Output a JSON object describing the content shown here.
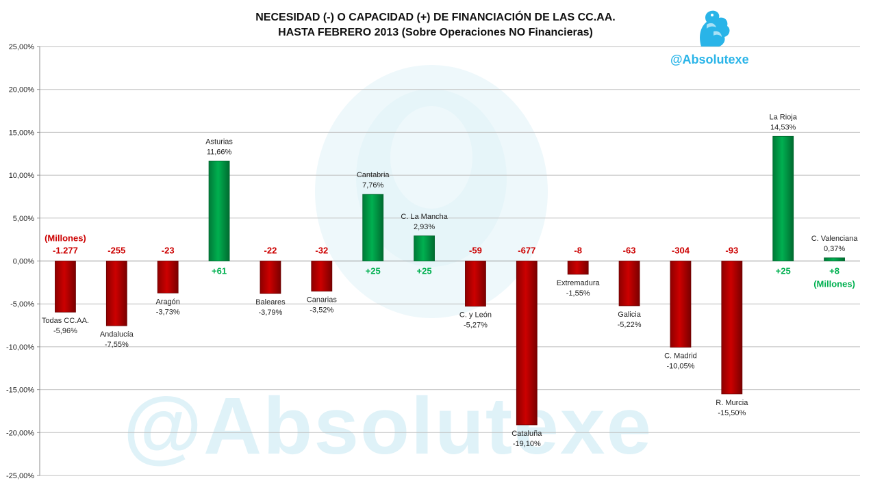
{
  "header": {
    "title_line1": "NECESIDAD (-) O CAPACIDAD (+) DE FINANCIACIÓN DE LAS CC.AA.",
    "title_line2": "HASTA FEBRERO 2013 (Sobre Operaciones NO Financieras)",
    "handle": "@Absolutexe",
    "watermark": "@Absolutexe"
  },
  "colors": {
    "negative": "#cc0000",
    "positive": "#00b050",
    "handle": "#29b4e8"
  },
  "chart_data": {
    "type": "bar",
    "title": "NECESIDAD (-) O CAPACIDAD (+) DE FINANCIACIÓN DE LAS CC.AA. HASTA FEBRERO 2013 (Sobre Operaciones NO Financieras)",
    "ylim": [
      -25,
      25
    ],
    "yticks": [
      25,
      20,
      15,
      10,
      5,
      0,
      -5,
      -10,
      -15,
      -20,
      -25
    ],
    "ytick_labels": [
      "25,00%",
      "20,00%",
      "15,00%",
      "10,00%",
      "5,00%",
      "0,00%",
      "-5,00%",
      "-10,00%",
      "-15,00%",
      "-20,00%",
      "-25,00%"
    ],
    "grid": true,
    "categories": [
      "Todas CC.AA.",
      "Andalucía",
      "Aragón",
      "Asturias",
      "Baleares",
      "Canarias",
      "Cantabria",
      "C. La Mancha",
      "C. y León",
      "Cataluña",
      "Extremadura",
      "Galicia",
      "C. Madrid",
      "R. Murcia",
      "La Rioja",
      "C. Valenciana"
    ],
    "values": [
      -5.96,
      -7.55,
      -3.73,
      11.66,
      -3.79,
      -3.52,
      7.76,
      2.93,
      -5.27,
      -19.1,
      -1.55,
      -5.22,
      -10.05,
      -15.5,
      14.53,
      0.37
    ],
    "value_labels": [
      "-5,96%",
      "-7,55%",
      "-3,73%",
      "11,66%",
      "-3,79%",
      "-3,52%",
      "7,76%",
      "2,93%",
      "-5,27%",
      "-19,10%",
      "-1,55%",
      "-5,22%",
      "-10,05%",
      "-15,50%",
      "14,53%",
      "0,37%"
    ],
    "millions": [
      "-1.277",
      "-255",
      "-23",
      "+61",
      "-22",
      "-32",
      "+25",
      "+25",
      "-59",
      "-677",
      "-8",
      "-63",
      "-304",
      "-93",
      "+25",
      "+8"
    ],
    "millions_unit_label": "(Millones)"
  }
}
